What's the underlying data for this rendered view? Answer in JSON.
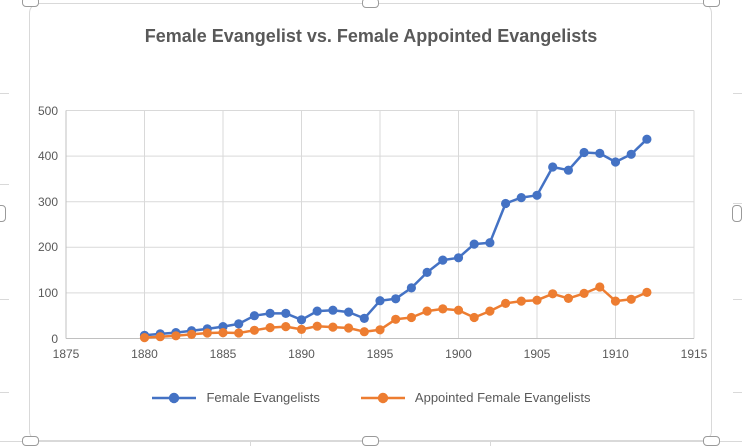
{
  "title": {
    "text": "Female Evangelist vs. Female Appointed Evangelists"
  },
  "legend": {
    "items": [
      {
        "label": "Female Evangelists",
        "color": "#4472C4"
      },
      {
        "label": "Appointed Female Evangelists",
        "color": "#ED7D31"
      }
    ]
  },
  "axes": {
    "x_tick_labels": [
      "1875",
      "1880",
      "1885",
      "1890",
      "1895",
      "1900",
      "1905",
      "1910",
      "1915"
    ],
    "y_tick_labels": [
      "0",
      "100",
      "200",
      "300",
      "400",
      "500"
    ]
  },
  "chart_data": {
    "type": "line",
    "title": "Female Evangelist vs. Female Appointed Evangelists",
    "x": [
      1880,
      1881,
      1882,
      1883,
      1884,
      1885,
      1886,
      1887,
      1888,
      1889,
      1890,
      1891,
      1892,
      1893,
      1894,
      1895,
      1896,
      1897,
      1898,
      1899,
      1900,
      1901,
      1902,
      1903,
      1904,
      1905,
      1906,
      1907,
      1908,
      1909,
      1910,
      1911,
      1912
    ],
    "series": [
      {
        "name": "Female Evangelists",
        "color": "#4472C4",
        "values": [
          7,
          10,
          13,
          17,
          21,
          26,
          32,
          50,
          55,
          55,
          41,
          60,
          62,
          58,
          44,
          83,
          87,
          111,
          145,
          172,
          177,
          207,
          210,
          296,
          309,
          314,
          376,
          369,
          408,
          406,
          387,
          404,
          437
        ]
      },
      {
        "name": "Appointed Female Evangelists",
        "color": "#ED7D31",
        "values": [
          2,
          4,
          6,
          9,
          12,
          13,
          12,
          18,
          24,
          26,
          20,
          27,
          25,
          23,
          15,
          19,
          42,
          46,
          60,
          65,
          62,
          46,
          60,
          77,
          82,
          84,
          98,
          88,
          99,
          113,
          82,
          86,
          101
        ]
      }
    ],
    "xlim": [
      1875,
      1915
    ],
    "ylim": [
      0,
      500
    ],
    "x_ticks": [
      1875,
      1880,
      1885,
      1890,
      1895,
      1900,
      1905,
      1910,
      1915
    ],
    "y_ticks": [
      0,
      100,
      200,
      300,
      400,
      500
    ],
    "grid": true,
    "legend_position": "bottom",
    "marker": "circle",
    "grid_color": "#D9D9D9",
    "axis_color": "#C0C0C0",
    "tick_label_color": "#595959",
    "title_color": "#595959"
  }
}
